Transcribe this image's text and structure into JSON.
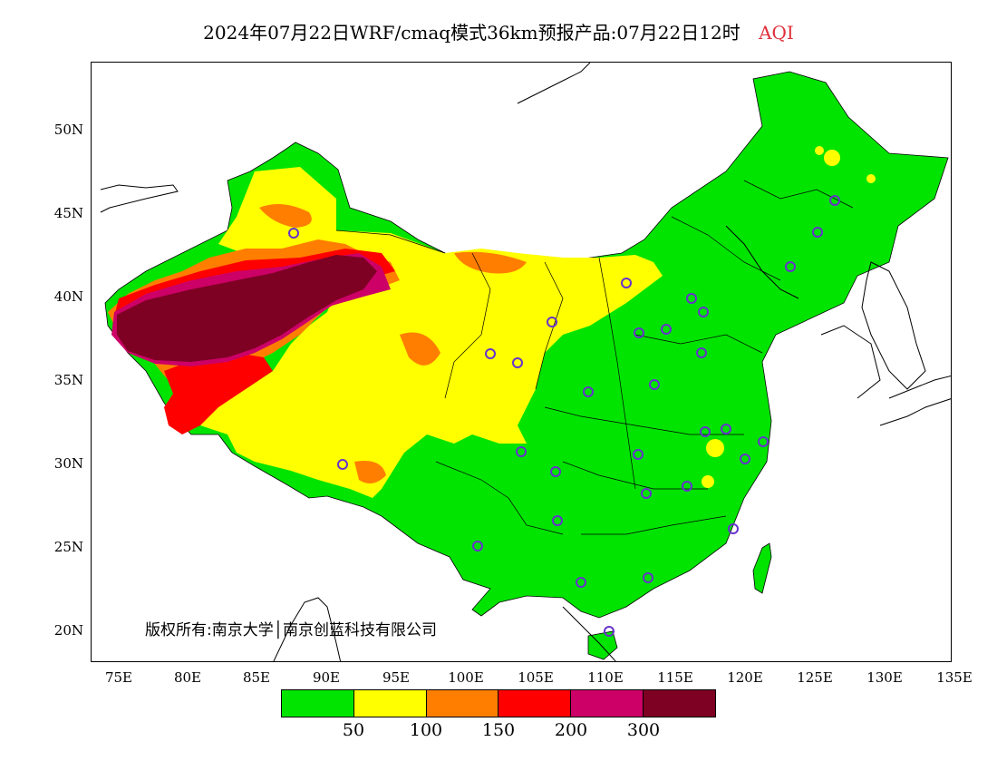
{
  "title": {
    "main": "2024年07月22日WRF/cmaq模式36km预报产品:07月22日12时",
    "aqi_label": "AQI",
    "aqi_color": "#e0303a"
  },
  "copyright": "版权所有:南京大学│南京创蓝科技有限公司",
  "y_axis": [
    "50N",
    "45N",
    "40N",
    "35N",
    "30N",
    "25N",
    "20N"
  ],
  "x_axis": [
    "75E",
    "80E",
    "85E",
    "90E",
    "95E",
    "100E",
    "105E",
    "110E",
    "115E",
    "120E",
    "125E",
    "130E",
    "135E"
  ],
  "legend": {
    "colors": [
      "#00e400",
      "#ffff00",
      "#ff7e00",
      "#ff0000",
      "#cc0066",
      "#7e0023"
    ],
    "labels": [
      "50",
      "100",
      "150",
      "200",
      "300"
    ]
  }
}
